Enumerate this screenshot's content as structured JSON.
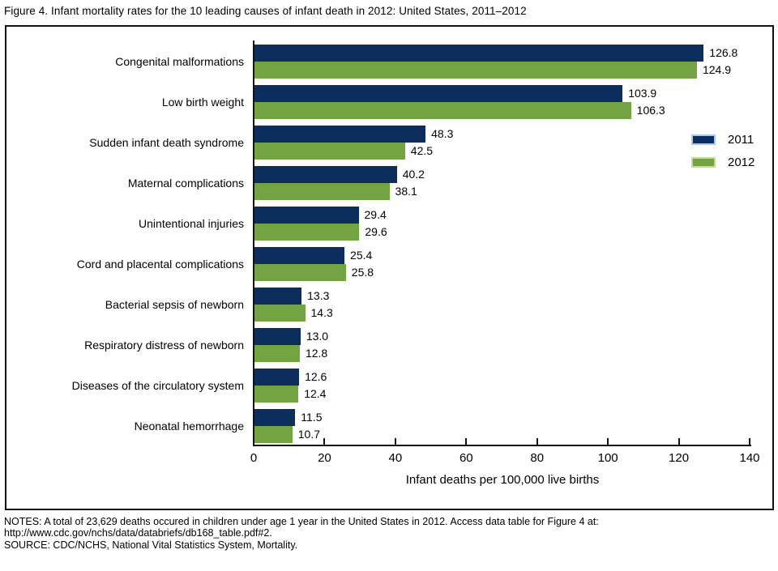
{
  "title": "Figure 4. Infant mortality rates for the 10 leading causes of infant death in 2012: United States, 2011–2012",
  "chart_data": {
    "type": "bar",
    "orientation": "horizontal",
    "title": "Figure 4. Infant mortality rates for the 10 leading causes of infant death in 2012: United States, 2011–2012",
    "categories": [
      "Congenital malformations",
      "Low birth weight",
      "Sudden infant death syndrome",
      "Maternal complications",
      "Unintentional injuries",
      "Cord and placental complications",
      "Bacterial sepsis of newborn",
      "Respiratory distress of newborn",
      "Diseases of the circulatory system",
      "Neonatal hemorrhage"
    ],
    "series": [
      {
        "name": "2011",
        "color": "#0c2e5c",
        "swatch_border": "#aec6e8",
        "values": [
          126.8,
          103.9,
          48.3,
          40.2,
          29.4,
          25.4,
          13.3,
          13.0,
          12.6,
          11.5
        ]
      },
      {
        "name": "2012",
        "color": "#74a343",
        "swatch_border": "#c6d9a0",
        "values": [
          124.9,
          106.3,
          42.5,
          38.1,
          29.6,
          25.8,
          14.3,
          12.8,
          12.4,
          10.7
        ]
      }
    ],
    "xlabel": "Infant deaths per 100,000 live births",
    "xlim": [
      0,
      140
    ],
    "xticks": [
      0,
      20,
      40,
      60,
      80,
      100,
      120,
      140
    ],
    "value_label_decimals": 1,
    "legend_position": "right-inside",
    "grid": false
  },
  "notes": {
    "line1": "NOTES: A total of 23,629 deaths occured in children under age 1 year in the United States in 2012. Access data table for Figure 4 at:",
    "line2": "http://www.cdc.gov/nchs/data/databriefs/db168_table.pdf#2.",
    "line3": "SOURCE: CDC/NCHS, National Vital Statistics System, Mortality."
  }
}
